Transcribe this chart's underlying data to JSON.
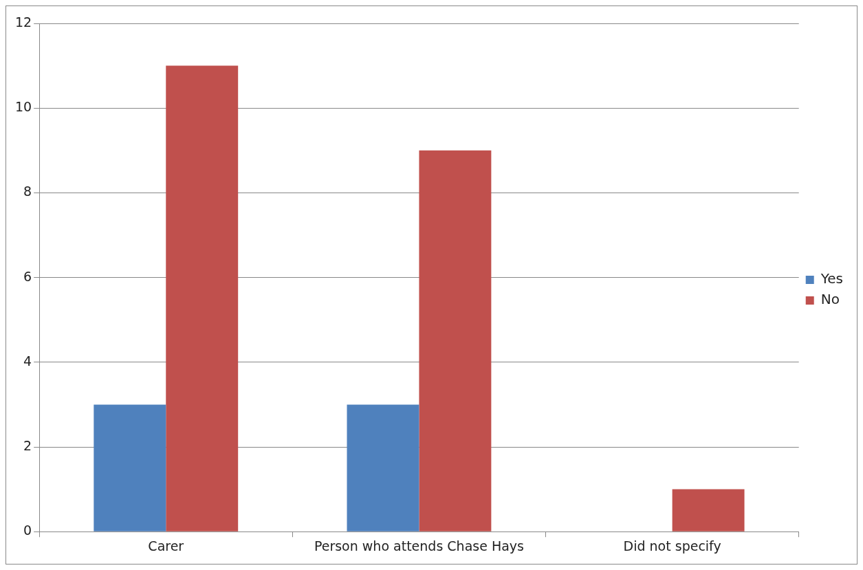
{
  "chart_data": {
    "type": "bar",
    "categories": [
      "Carer",
      "Person who attends Chase Hays",
      "Did not specify"
    ],
    "series": [
      {
        "name": "Yes",
        "color": "#4f81bd",
        "values": [
          3,
          3,
          0
        ]
      },
      {
        "name": "No",
        "color": "#c0504d",
        "values": [
          11,
          9,
          1
        ]
      }
    ],
    "ylim": [
      0,
      12
    ],
    "yticks": [
      0,
      2,
      4,
      6,
      8,
      10,
      12
    ],
    "grid": "y",
    "legend": "right"
  }
}
